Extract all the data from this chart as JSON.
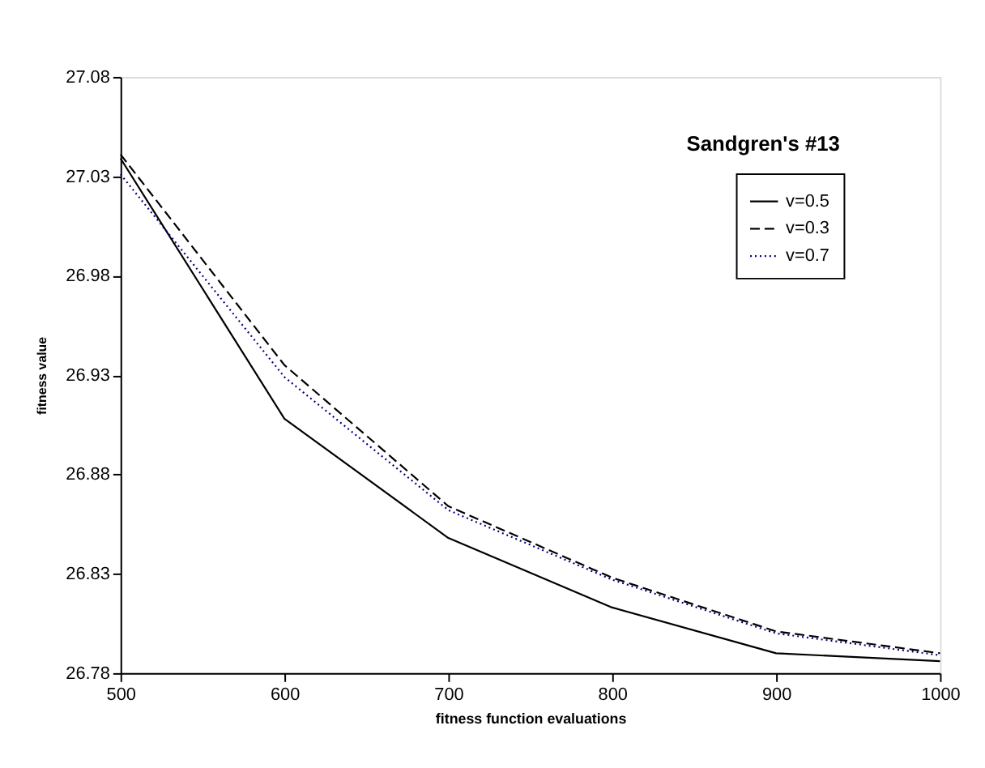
{
  "chart_data": {
    "type": "line",
    "title": "Sandgren's #13",
    "xlabel": "fitness function evaluations",
    "ylabel": "fitness value",
    "x": [
      500,
      600,
      700,
      800,
      900,
      1000
    ],
    "series": [
      {
        "name": "v=0.5",
        "color": "#000000",
        "line_style": "solid",
        "values": [
          27.039,
          26.908,
          26.848,
          26.813,
          26.79,
          26.786
        ]
      },
      {
        "name": "v=0.3",
        "color": "#000000",
        "line_style": "dashed",
        "values": [
          27.041,
          26.935,
          26.864,
          26.828,
          26.801,
          26.79
        ]
      },
      {
        "name": "v=0.7",
        "color": "#000080",
        "line_style": "dotted",
        "values": [
          27.031,
          26.929,
          26.862,
          26.827,
          26.8,
          26.789
        ]
      }
    ],
    "xlim": [
      500,
      1000
    ],
    "xticks": [
      500,
      600,
      700,
      800,
      900,
      1000
    ],
    "ylim": [
      26.78,
      27.08
    ],
    "yticks": [
      26.78,
      26.83,
      26.88,
      26.93,
      26.98,
      27.03,
      27.08
    ],
    "grid": false,
    "legend": "top right",
    "marker": "none"
  }
}
